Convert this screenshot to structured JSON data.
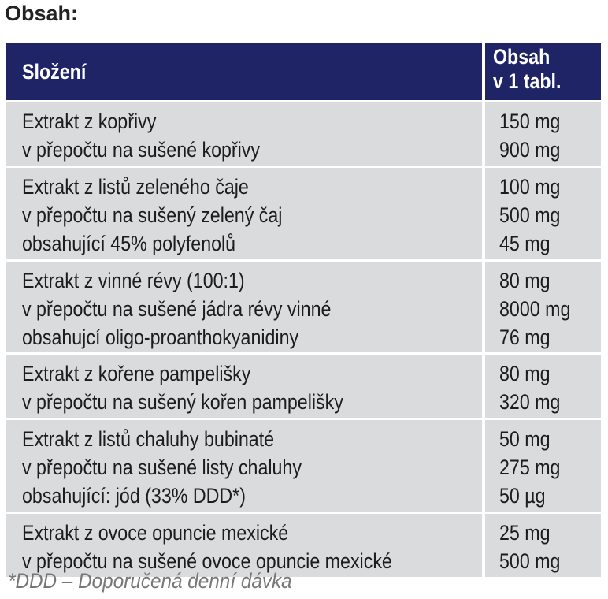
{
  "title": "Obsah:",
  "table": {
    "header": {
      "composition": [
        "Složení"
      ],
      "amount": [
        "Obsah",
        "v 1 tabl."
      ]
    },
    "rows": [
      {
        "composition": [
          "Extrakt z kopřivy",
          "v přepočtu na sušené kopřivy"
        ],
        "amount": [
          "150 mg",
          "900 mg"
        ]
      },
      {
        "composition": [
          "Extrakt z listů zeleného čaje",
          "v přepočtu na sušený zelený čaj",
          "obsahující 45% polyfenolů"
        ],
        "amount": [
          "100 mg",
          "500 mg",
          "45 mg"
        ]
      },
      {
        "composition": [
          "Extrakt z vinné révy (100:1)",
          "v přepočtu na sušené jádra révy vinné",
          "obsahujcí oligo-proanthokyanidiny"
        ],
        "amount": [
          "80 mg",
          "8000 mg",
          "76 mg"
        ]
      },
      {
        "composition": [
          "Extrakt z kořene pampelišky",
          "v přepočtu na sušený kořen pampelišky"
        ],
        "amount": [
          "80 mg",
          "320 mg"
        ]
      },
      {
        "composition": [
          "Extrakt z listů chaluhy bubinaté",
          "v přepočtu na sušené listy chaluhy",
          "obsahující: jód (33% DDD*)"
        ],
        "amount": [
          "50 mg",
          "275 mg",
          "50 µg"
        ]
      },
      {
        "composition": [
          "Extrakt z ovoce opuncie mexické",
          "v přepočtu na sušené ovoce opuncie mexické"
        ],
        "amount": [
          "25 mg",
          "500 mg"
        ]
      }
    ]
  },
  "footnote": "*DDD – Doporučená denní dávka"
}
